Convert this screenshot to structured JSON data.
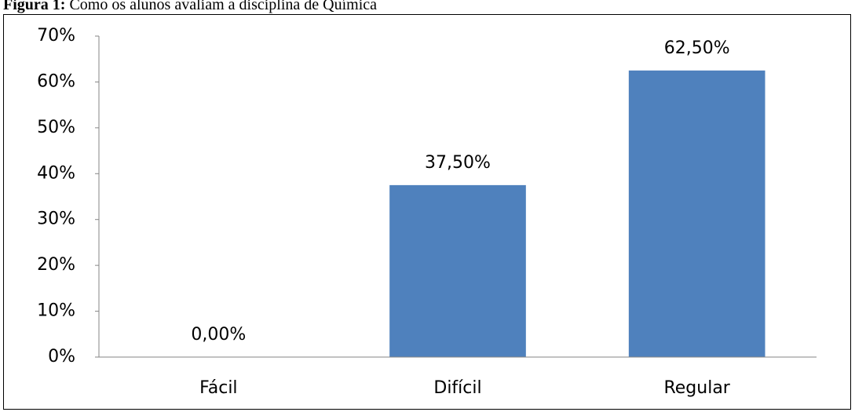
{
  "chart_data": {
    "type": "bar",
    "figure_label": "Figura 1:",
    "title": "Como os alunos avaliam a disciplina de Química",
    "categories": [
      "Fácil",
      "Difícil",
      "Regular"
    ],
    "values": [
      0,
      37.5,
      62.5
    ],
    "value_labels": [
      "0,00%",
      "37,50%",
      "62,50%"
    ],
    "color": "#4f81bd",
    "ylim": [
      0,
      70
    ],
    "yticks": [
      {
        "value": 0,
        "label": "0%"
      },
      {
        "value": 10,
        "label": "10%"
      },
      {
        "value": 20,
        "label": "20%"
      },
      {
        "value": 30,
        "label": "30%"
      },
      {
        "value": 40,
        "label": "40%"
      },
      {
        "value": 50,
        "label": "50%"
      },
      {
        "value": 60,
        "label": "60%"
      },
      {
        "value": 70,
        "label": "70%"
      }
    ],
    "grid": false
  }
}
